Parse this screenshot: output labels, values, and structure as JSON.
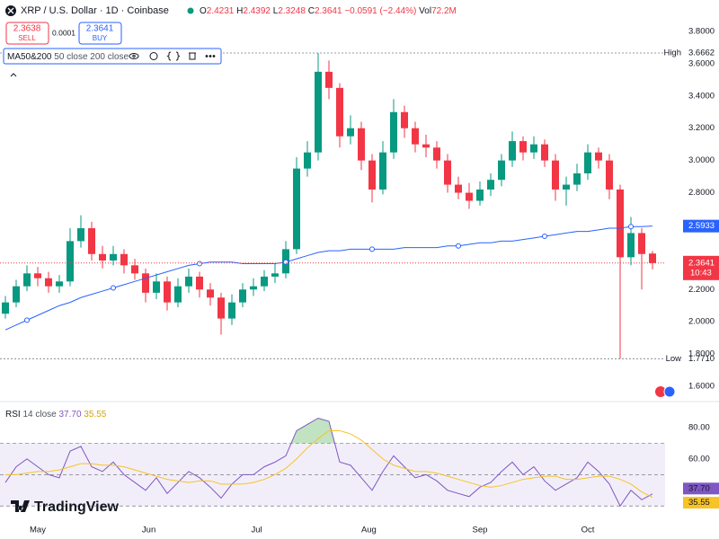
{
  "header": {
    "symbol": "XRP / U.S. Dollar · 1D · Coinbase",
    "ohlc": [
      {
        "k": "O",
        "v": "2.4231"
      },
      {
        "k": "H",
        "v": "2.4392"
      },
      {
        "k": "L",
        "v": "2.3248"
      },
      {
        "k": "C",
        "v": "2.3641"
      }
    ],
    "change": "−0.0591 (−2.44%)",
    "volume_label": "Vol",
    "volume": "72.2M",
    "sell": {
      "price": "2.3638",
      "label": "SELL"
    },
    "spread": "0.0001",
    "buy": {
      "price": "2.3641",
      "label": "BUY"
    }
  },
  "branding": "TradingView",
  "chart_data": [
    {
      "type": "candlestick",
      "up_color": "#089981",
      "down_color": "#f23645",
      "open": [
        2.05,
        2.12,
        2.22,
        2.3,
        2.27,
        2.22,
        2.25,
        2.5,
        2.58,
        2.42,
        2.38,
        2.42,
        2.35,
        2.3,
        2.18,
        2.25,
        2.12,
        2.22,
        2.28,
        2.2,
        2.15,
        2.02,
        2.12,
        2.2,
        2.22,
        2.28,
        2.3,
        2.45,
        2.95,
        3.05,
        3.55,
        3.45,
        3.15,
        3.2,
        3.0,
        2.82,
        3.05,
        3.3,
        3.2,
        3.1,
        3.08,
        3.0,
        2.85,
        2.8,
        2.75,
        2.82,
        2.88,
        3.0,
        3.12,
        3.05,
        3.1,
        3.0,
        2.82,
        2.85,
        2.92,
        3.05,
        3.0,
        2.82,
        2.4,
        2.55,
        2.4231
      ],
      "high": [
        2.16,
        2.26,
        2.35,
        2.34,
        2.31,
        2.29,
        2.58,
        2.66,
        2.62,
        2.47,
        2.47,
        2.45,
        2.39,
        2.33,
        2.3,
        2.28,
        2.27,
        2.33,
        2.31,
        2.24,
        2.18,
        2.17,
        2.24,
        2.27,
        2.32,
        2.36,
        2.5,
        3.02,
        3.12,
        3.6662,
        3.62,
        3.48,
        3.28,
        3.24,
        3.04,
        3.12,
        3.38,
        3.34,
        3.24,
        3.16,
        3.12,
        3.04,
        2.9,
        2.86,
        2.87,
        2.92,
        3.04,
        3.18,
        3.15,
        3.15,
        3.13,
        3.04,
        2.9,
        2.98,
        3.1,
        3.08,
        3.04,
        2.85,
        2.65,
        2.58,
        2.4392
      ],
      "low": [
        2.02,
        2.09,
        2.19,
        2.22,
        2.18,
        2.18,
        2.22,
        2.46,
        2.38,
        2.33,
        2.35,
        2.3,
        2.26,
        2.12,
        2.14,
        2.07,
        2.09,
        2.18,
        2.15,
        2.1,
        1.92,
        1.98,
        2.09,
        2.16,
        2.19,
        2.24,
        2.27,
        2.42,
        2.9,
        3.0,
        3.38,
        3.08,
        3.1,
        2.94,
        2.74,
        2.79,
        3.01,
        3.14,
        3.05,
        3.02,
        2.95,
        2.8,
        2.76,
        2.7,
        2.72,
        2.78,
        2.84,
        2.96,
        3.0,
        3.01,
        2.96,
        2.75,
        2.72,
        2.81,
        2.88,
        2.95,
        2.76,
        1.771,
        2.35,
        2.2,
        2.3248
      ],
      "close": [
        2.12,
        2.22,
        2.3,
        2.27,
        2.22,
        2.25,
        2.5,
        2.58,
        2.42,
        2.38,
        2.42,
        2.35,
        2.3,
        2.18,
        2.25,
        2.12,
        2.22,
        2.28,
        2.2,
        2.15,
        2.02,
        2.12,
        2.2,
        2.22,
        2.28,
        2.3,
        2.45,
        2.95,
        3.05,
        3.55,
        3.45,
        3.15,
        3.2,
        3.0,
        2.82,
        3.05,
        3.3,
        3.2,
        3.1,
        3.08,
        3.0,
        2.85,
        2.8,
        2.75,
        2.82,
        2.88,
        3.0,
        3.12,
        3.05,
        3.1,
        3.0,
        2.82,
        2.85,
        2.92,
        3.05,
        3.0,
        2.82,
        2.4,
        2.55,
        2.42,
        2.3641
      ],
      "overlays": [
        {
          "name": "MA50&200",
          "params": "50 close 200 close",
          "color": "#2962ff",
          "values": [
            1.95,
            1.98,
            2.01,
            2.04,
            2.07,
            2.1,
            2.12,
            2.15,
            2.17,
            2.19,
            2.21,
            2.23,
            2.25,
            2.27,
            2.29,
            2.31,
            2.33,
            2.35,
            2.36,
            2.37,
            2.37,
            2.37,
            2.36,
            2.36,
            2.36,
            2.36,
            2.37,
            2.39,
            2.41,
            2.43,
            2.44,
            2.44,
            2.45,
            2.45,
            2.45,
            2.45,
            2.45,
            2.46,
            2.46,
            2.46,
            2.46,
            2.47,
            2.47,
            2.48,
            2.49,
            2.49,
            2.5,
            2.5,
            2.51,
            2.52,
            2.53,
            2.54,
            2.55,
            2.56,
            2.56,
            2.57,
            2.58,
            2.58,
            2.59,
            2.59,
            2.5933
          ],
          "last": {
            "value": 2.5933,
            "label": "2.5933"
          }
        }
      ],
      "high_low": [
        {
          "name": "High",
          "value": 3.6662,
          "label": "3.6662"
        },
        {
          "name": "Low",
          "value": 1.771,
          "label": "1.7710"
        }
      ],
      "current": {
        "value": 2.3641,
        "label": "2.3641",
        "countdown": "10:43"
      },
      "ylim": [
        1.6,
        3.8
      ],
      "yticks": [
        {
          "value": 1.6,
          "label": "1.6000"
        },
        {
          "value": 1.8,
          "label": "1.8000"
        },
        {
          "value": 2.0,
          "label": "2.0000"
        },
        {
          "value": 2.2,
          "label": "2.2000"
        },
        {
          "value": 2.8,
          "label": "2.8000"
        },
        {
          "value": 3.0,
          "label": "3.0000"
        },
        {
          "value": 3.2,
          "label": "3.2000"
        },
        {
          "value": 3.4,
          "label": "3.4000"
        },
        {
          "value": 3.6,
          "label": "3.6000"
        },
        {
          "value": 3.8,
          "label": "3.8000"
        }
      ]
    },
    {
      "type": "line",
      "name": "RSI",
      "params": "14 close",
      "series": [
        {
          "name": "RSI",
          "color": "#7e57c2",
          "last_label": "37.70",
          "values": [
            45,
            55,
            60,
            55,
            50,
            48,
            65,
            68,
            55,
            52,
            58,
            50,
            45,
            40,
            48,
            38,
            45,
            52,
            48,
            42,
            35,
            44,
            50,
            50,
            55,
            58,
            62,
            78,
            82,
            86,
            84,
            58,
            56,
            48,
            40,
            52,
            62,
            55,
            48,
            50,
            46,
            40,
            38,
            36,
            42,
            45,
            52,
            58,
            50,
            55,
            46,
            40,
            44,
            48,
            58,
            52,
            44,
            30,
            40,
            34,
            37.7
          ]
        },
        {
          "name": "RSI-based MA",
          "color": "#f7c325",
          "last_label": "35.55",
          "values": [
            50,
            50,
            51,
            52,
            52,
            53,
            55,
            57,
            57,
            56,
            56,
            55,
            53,
            51,
            49,
            47,
            46,
            45,
            46,
            46,
            44,
            44,
            44,
            45,
            47,
            50,
            54,
            60,
            67,
            73,
            78,
            78,
            76,
            72,
            66,
            60,
            56,
            54,
            52,
            52,
            51,
            49,
            47,
            45,
            43,
            42,
            43,
            45,
            47,
            48,
            49,
            49,
            47,
            47,
            48,
            49,
            49,
            47,
            44,
            39,
            35.55
          ]
        }
      ],
      "bands": {
        "upper": 70,
        "middle": 50,
        "lower": 30
      },
      "ylim": [
        25,
        92
      ],
      "yticks": [
        {
          "value": 60,
          "label": "60.00"
        },
        {
          "value": 80,
          "label": "80.00"
        }
      ],
      "xticks": [
        {
          "value": 3,
          "label": "May"
        },
        {
          "value": 13.3,
          "label": "Jun"
        },
        {
          "value": 23.3,
          "label": "Jul"
        },
        {
          "value": 33.7,
          "label": "Aug"
        },
        {
          "value": 44,
          "label": "Sep"
        },
        {
          "value": 54,
          "label": "Oct"
        }
      ]
    }
  ]
}
